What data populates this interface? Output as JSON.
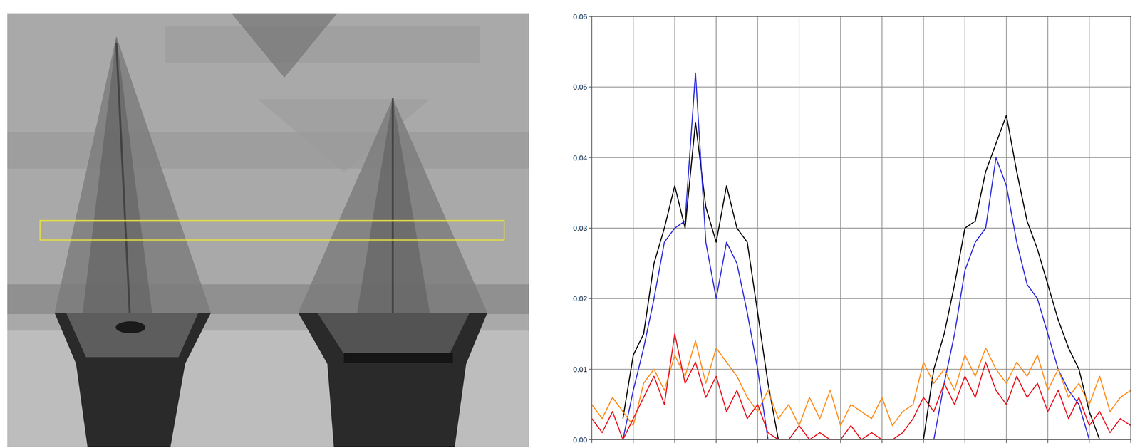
{
  "chart_data": {
    "type": "line",
    "x": [
      0,
      0.25,
      0.5,
      0.75,
      1,
      1.25,
      1.5,
      1.75,
      2,
      2.25,
      2.5,
      2.75,
      3,
      3.25,
      3.5,
      3.75,
      4,
      4.25,
      4.5,
      4.75,
      5,
      5.25,
      5.5,
      5.75,
      6,
      6.25,
      6.5,
      6.75,
      7,
      7.25,
      7.5,
      7.75,
      8,
      8.25,
      8.5,
      8.75,
      9,
      9.25,
      9.5,
      9.75,
      10,
      10.25,
      10.5,
      10.75,
      11,
      11.25,
      11.5,
      11.75,
      12,
      12.25,
      12.5,
      12.75,
      13
    ],
    "series": [
      {
        "color": "#000000",
        "values": [
          null,
          null,
          null,
          0.003,
          0.012,
          0.015,
          0.025,
          0.03,
          0.036,
          0.03,
          0.045,
          0.033,
          0.028,
          0.036,
          0.03,
          0.028,
          0.018,
          0.008,
          0,
          null,
          null,
          null,
          null,
          null,
          null,
          null,
          null,
          null,
          null,
          null,
          null,
          null,
          0,
          0.01,
          0.015,
          0.022,
          0.03,
          0.031,
          0.038,
          0.042,
          0.046,
          0.038,
          0.031,
          0.027,
          0.022,
          0.017,
          0.013,
          0.01,
          0.004,
          0,
          null,
          null,
          null
        ]
      },
      {
        "color": "#2b2bd9",
        "values": [
          null,
          null,
          null,
          0,
          0.007,
          0.013,
          0.02,
          0.028,
          0.03,
          0.031,
          0.052,
          0.028,
          0.02,
          0.028,
          0.025,
          0.018,
          0.01,
          0,
          null,
          null,
          null,
          null,
          null,
          null,
          null,
          null,
          null,
          null,
          null,
          null,
          null,
          null,
          null,
          0,
          0.008,
          0.015,
          0.024,
          0.028,
          0.03,
          0.04,
          0.036,
          0.028,
          0.022,
          0.02,
          0.015,
          0.01,
          0.007,
          0.005,
          0,
          null,
          null,
          null,
          null
        ]
      },
      {
        "color": "#ff8c1a",
        "values": [
          0.005,
          0.003,
          0.006,
          0.004,
          0.002,
          0.008,
          0.01,
          0.007,
          0.012,
          0.009,
          0.014,
          0.008,
          0.013,
          0.011,
          0.009,
          0.006,
          0.004,
          0.007,
          0.003,
          0.005,
          0.002,
          0.006,
          0.003,
          0.007,
          0.002,
          0.005,
          0.004,
          0.003,
          0.006,
          0.002,
          0.004,
          0.005,
          0.011,
          0.008,
          0.01,
          0.007,
          0.012,
          0.009,
          0.013,
          0.01,
          0.008,
          0.011,
          0.009,
          0.012,
          0.007,
          0.01,
          0.006,
          0.008,
          0.005,
          0.009,
          0.004,
          0.006,
          0.007
        ]
      },
      {
        "color": "#e8141e",
        "values": [
          0.003,
          0.001,
          0.004,
          0,
          0.003,
          0.006,
          0.009,
          0.005,
          0.015,
          0.008,
          0.011,
          0.006,
          0.009,
          0.004,
          0.007,
          0.003,
          0.005,
          0.001,
          0,
          0,
          0.002,
          0,
          0.001,
          0,
          0,
          0.002,
          0,
          0.001,
          0,
          0,
          0.001,
          0.003,
          0.006,
          0.004,
          0.008,
          0.005,
          0.009,
          0.006,
          0.011,
          0.007,
          0.005,
          0.009,
          0.006,
          0.008,
          0.004,
          0.007,
          0.003,
          0.006,
          0.002,
          0.004,
          0.001,
          0.003,
          0.002
        ]
      }
    ],
    "xlim": [
      0,
      13
    ],
    "xticks": [
      0,
      1,
      2,
      3,
      4,
      5,
      6,
      7,
      8,
      9,
      10,
      11,
      12,
      13
    ],
    "ylim": [
      0,
      0.06
    ],
    "yticks": [
      {
        "value": 0,
        "label": "0.00"
      },
      {
        "value": 0.01,
        "label": "0.01"
      },
      {
        "value": 0.02,
        "label": "0.02"
      },
      {
        "value": 0.03,
        "label": "0.03"
      },
      {
        "value": 0.04,
        "label": "0.04"
      },
      {
        "value": 0.05,
        "label": "0.05"
      },
      {
        "value": 0.06,
        "label": "0.06"
      }
    ],
    "grid": true,
    "tick_labels": "y"
  }
}
